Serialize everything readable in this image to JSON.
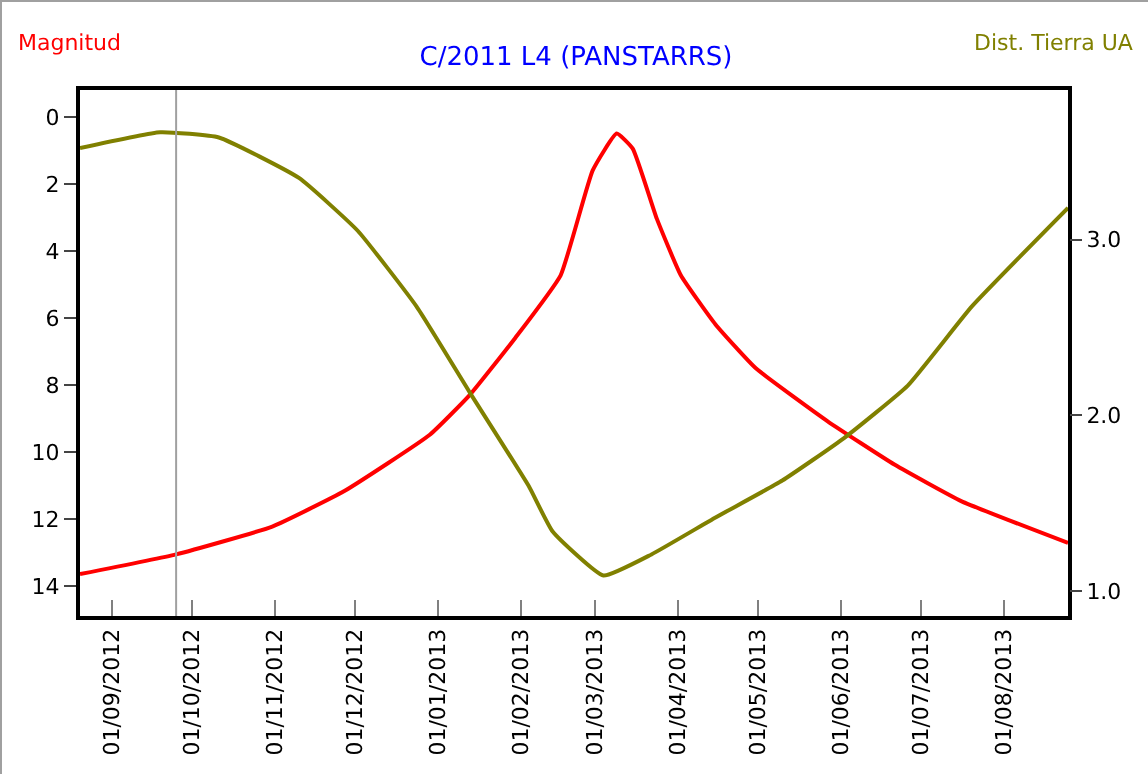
{
  "chart_data": {
    "type": "line",
    "title": "C/2011 L4 (PANSTARRS)",
    "ylabel": "Magnitud",
    "y2label": "Dist. Tierra UA",
    "xlim": [
      "2012-08-20",
      "2013-08-25"
    ],
    "xticks": [
      {
        "value": "2012-09-01",
        "label": "01/09/2012"
      },
      {
        "value": "2012-10-01",
        "label": "01/10/2012"
      },
      {
        "value": "2012-11-01",
        "label": "01/11/2012"
      },
      {
        "value": "2012-12-01",
        "label": "01/12/2012"
      },
      {
        "value": "2013-01-01",
        "label": "01/01/2013"
      },
      {
        "value": "2013-02-01",
        "label": "01/02/2013"
      },
      {
        "value": "2013-03-01",
        "label": "01/03/2013"
      },
      {
        "value": "2013-04-01",
        "label": "01/04/2013"
      },
      {
        "value": "2013-05-01",
        "label": "01/05/2013"
      },
      {
        "value": "2013-06-01",
        "label": "01/06/2013"
      },
      {
        "value": "2013-07-01",
        "label": "01/07/2013"
      },
      {
        "value": "2013-08-01",
        "label": "01/08/2013"
      }
    ],
    "ylim": [
      14.9,
      -0.8
    ],
    "yticks": [
      0,
      2,
      4,
      6,
      8,
      10,
      12,
      14
    ],
    "y2lim": [
      0.86,
      3.85
    ],
    "y2ticks": [
      {
        "value": 1,
        "label": "1.0"
      },
      {
        "value": 2,
        "label": "2.0"
      },
      {
        "value": 3,
        "label": "3.0"
      }
    ],
    "grid": false,
    "marker": "none",
    "line_style": "solid",
    "ref_lines": [
      {
        "axis": "x",
        "value": "2012-09-25",
        "color": "#a0a0a0"
      }
    ],
    "series": [
      {
        "color": "#ff0000",
        "x": [
          "2012-08-20",
          "2012-09-25",
          "2012-10-31",
          "2012-11-27",
          "2012-12-29",
          "2013-01-13",
          "2013-01-30",
          "2013-02-16",
          "2013-02-28",
          "2013-03-09",
          "2013-03-15",
          "2013-03-24",
          "2013-04-02",
          "2013-04-15",
          "2013-04-30",
          "2013-05-27",
          "2013-06-21",
          "2013-07-16",
          "2013-08-25"
        ],
        "values": [
          13.65,
          13.06,
          12.23,
          11.17,
          9.49,
          8.3,
          6.6,
          4.73,
          1.6,
          0.5,
          0.95,
          3.04,
          4.73,
          6.2,
          7.5,
          9.09,
          10.38,
          11.47,
          12.72
        ]
      },
      {
        "color": "#808000",
        "axis": "y2",
        "x": [
          "2012-08-20",
          "2012-09-19",
          "2012-10-11",
          "2012-11-10",
          "2012-12-02",
          "2012-12-24",
          "2013-01-13",
          "2013-02-04",
          "2013-02-13",
          "2013-03-04",
          "2013-03-22",
          "2013-04-15",
          "2013-05-10",
          "2013-06-02",
          "2013-06-26",
          "2013-07-20",
          "2013-08-25"
        ],
        "values": [
          3.52,
          3.61,
          3.58,
          3.35,
          3.05,
          2.62,
          2.13,
          1.6,
          1.34,
          1.09,
          1.21,
          1.42,
          1.63,
          1.87,
          2.17,
          2.62,
          3.18
        ]
      }
    ]
  }
}
